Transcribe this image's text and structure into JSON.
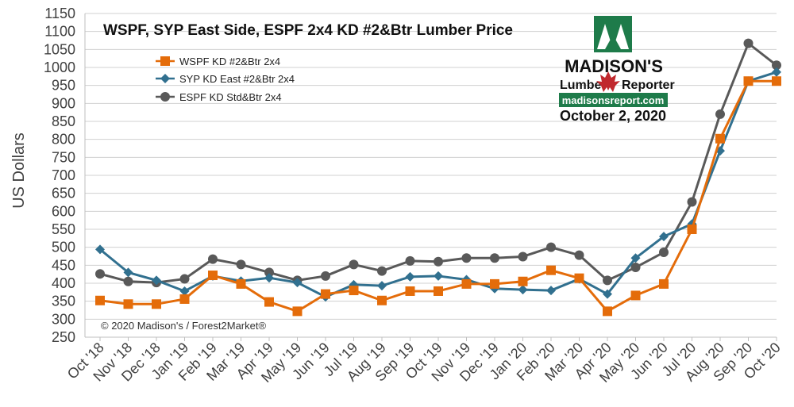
{
  "chart_data": {
    "type": "line",
    "title": "WSPF, SYP East Side, ESPF 2x4 KD #2&Btr Lumber Price",
    "ylabel": "US Dollars",
    "ylim": [
      250,
      1150
    ],
    "ytick_step": 50,
    "grid": "horizontal",
    "legend_position": "top-left",
    "categories": [
      "Oct '18",
      "Nov '18",
      "Dec '18",
      "Jan '19",
      "Feb '19",
      "Mar '19",
      "Apr '19",
      "May '19",
      "Jun '19",
      "Jul '19",
      "Aug '19",
      "Sep '19",
      "Oct '19",
      "Nov '19",
      "Dec '19",
      "Jan '20",
      "Feb '20",
      "Mar '20",
      "Apr '20",
      "May '20",
      "Jun '20",
      "Jul '20",
      "Aug '20",
      "Sep '20",
      "Oct '20"
    ],
    "series": [
      {
        "name": "WSPF KD #2&Btr 2x4",
        "color": "#E46C0A",
        "marker": "square",
        "values": [
          352,
          342,
          342,
          356,
          422,
          398,
          348,
          322,
          370,
          380,
          352,
          378,
          378,
          398,
          398,
          405,
          436,
          414,
          322,
          366,
          398,
          550,
          802,
          962,
          962
        ]
      },
      {
        "name": "SYP KD East #2&Btr 2x4",
        "color": "#31708F",
        "marker": "diamond",
        "values": [
          494,
          430,
          408,
          378,
          420,
          406,
          415,
          402,
          362,
          396,
          393,
          418,
          420,
          410,
          385,
          382,
          380,
          412,
          370,
          470,
          530,
          565,
          768,
          962,
          987
        ]
      },
      {
        "name": "ESPF KD Std&Btr 2x4",
        "color": "#595959",
        "marker": "circle",
        "values": [
          426,
          405,
          402,
          412,
          467,
          452,
          430,
          408,
          420,
          452,
          434,
          462,
          460,
          470,
          470,
          474,
          500,
          478,
          408,
          444,
          486,
          626,
          870,
          1067,
          1006
        ]
      }
    ],
    "copyright": "© 2020 Madison's / Forest2Market®"
  },
  "logo": {
    "name": "MADISON'S",
    "sub_left": "Lumber",
    "sub_right": "Reporter",
    "url": "madisonsreport.com",
    "date": "October 2, 2020",
    "brand_green": "#1E7B4A",
    "leaf_red": "#C0282D"
  }
}
